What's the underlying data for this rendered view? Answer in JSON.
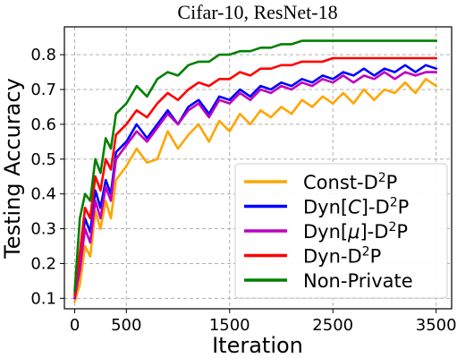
{
  "chart_data": {
    "type": "line",
    "title": "Cifar-10, ResNet-18",
    "xlabel": "Iteration",
    "ylabel": "Testing Accuracy",
    "xlim": [
      -100,
      3650
    ],
    "ylim": [
      0.07,
      0.88
    ],
    "xticks": [
      0,
      500,
      1500,
      2500,
      3500
    ],
    "xtick_labels": [
      "0",
      "500",
      "1500",
      "2500",
      "3500"
    ],
    "yticks": [
      0.1,
      0.2,
      0.3,
      0.4,
      0.5,
      0.6,
      0.7,
      0.8
    ],
    "ytick_labels": [
      "0.1",
      "0.2",
      "0.3",
      "0.4",
      "0.5",
      "0.6",
      "0.7",
      "0.8"
    ],
    "grid": true,
    "legend_position": "bottom-right",
    "series": [
      {
        "name": "Const-D²P",
        "name_parts": {
          "pre": "Const-D",
          "sup": "2",
          "post": "P"
        },
        "color": "#ffa500",
        "x": [
          0,
          50,
          100,
          150,
          200,
          250,
          300,
          350,
          400,
          500,
          600,
          700,
          800,
          900,
          1000,
          1100,
          1200,
          1300,
          1400,
          1500,
          1600,
          1700,
          1800,
          1900,
          2000,
          2100,
          2200,
          2300,
          2400,
          2500,
          2600,
          2700,
          2800,
          2900,
          3000,
          3100,
          3200,
          3300,
          3400,
          3500
        ],
        "y": [
          0.09,
          0.14,
          0.25,
          0.22,
          0.35,
          0.3,
          0.38,
          0.33,
          0.44,
          0.48,
          0.53,
          0.49,
          0.5,
          0.58,
          0.53,
          0.57,
          0.6,
          0.55,
          0.61,
          0.58,
          0.63,
          0.6,
          0.64,
          0.62,
          0.65,
          0.63,
          0.67,
          0.65,
          0.68,
          0.66,
          0.69,
          0.66,
          0.7,
          0.67,
          0.7,
          0.69,
          0.72,
          0.69,
          0.73,
          0.71
        ]
      },
      {
        "name": "Dyn[C]-D²P",
        "name_parts": {
          "pre": "Dyn[",
          "italic": "C",
          "mid": "]-D",
          "sup": "2",
          "post": "P"
        },
        "color": "#0000ff",
        "x": [
          0,
          50,
          100,
          150,
          200,
          250,
          300,
          350,
          400,
          500,
          600,
          700,
          800,
          900,
          1000,
          1100,
          1200,
          1300,
          1400,
          1500,
          1600,
          1700,
          1800,
          1900,
          2000,
          2100,
          2200,
          2300,
          2400,
          2500,
          2600,
          2700,
          2800,
          2900,
          3000,
          3100,
          3200,
          3300,
          3400,
          3500
        ],
        "y": [
          0.1,
          0.2,
          0.33,
          0.29,
          0.41,
          0.36,
          0.44,
          0.4,
          0.52,
          0.55,
          0.6,
          0.56,
          0.6,
          0.64,
          0.6,
          0.65,
          0.67,
          0.63,
          0.68,
          0.67,
          0.7,
          0.68,
          0.71,
          0.7,
          0.72,
          0.71,
          0.73,
          0.72,
          0.74,
          0.73,
          0.75,
          0.74,
          0.76,
          0.74,
          0.76,
          0.75,
          0.77,
          0.75,
          0.77,
          0.76
        ]
      },
      {
        "name": "Dyn[μ]-D²P",
        "name_parts": {
          "pre": "Dyn[",
          "italic": "μ",
          "mid": "]-D",
          "sup": "2",
          "post": "P"
        },
        "color": "#bf00bf",
        "x": [
          0,
          50,
          100,
          150,
          200,
          250,
          300,
          350,
          400,
          500,
          600,
          700,
          800,
          900,
          1000,
          1100,
          1200,
          1300,
          1400,
          1500,
          1600,
          1700,
          1800,
          1900,
          2000,
          2100,
          2200,
          2300,
          2400,
          2500,
          2600,
          2700,
          2800,
          2900,
          3000,
          3100,
          3200,
          3300,
          3400,
          3500
        ],
        "y": [
          0.1,
          0.18,
          0.3,
          0.26,
          0.38,
          0.33,
          0.42,
          0.38,
          0.5,
          0.54,
          0.58,
          0.55,
          0.59,
          0.63,
          0.6,
          0.64,
          0.66,
          0.62,
          0.67,
          0.66,
          0.69,
          0.67,
          0.7,
          0.69,
          0.71,
          0.7,
          0.72,
          0.71,
          0.73,
          0.72,
          0.74,
          0.72,
          0.74,
          0.73,
          0.75,
          0.73,
          0.75,
          0.74,
          0.75,
          0.75
        ]
      },
      {
        "name": "Dyn-D²P",
        "name_parts": {
          "pre": "Dyn-D",
          "sup": "2",
          "post": "P"
        },
        "color": "#ff0000",
        "x": [
          0,
          50,
          100,
          150,
          200,
          250,
          300,
          350,
          400,
          500,
          600,
          700,
          800,
          900,
          1000,
          1100,
          1200,
          1300,
          1400,
          1500,
          1600,
          1700,
          1800,
          1900,
          2000,
          2100,
          2200,
          2300,
          2400,
          2500,
          2600,
          2700,
          2800,
          2900,
          3000,
          3100,
          3200,
          3300,
          3400,
          3500
        ],
        "y": [
          0.11,
          0.23,
          0.36,
          0.33,
          0.45,
          0.41,
          0.5,
          0.47,
          0.57,
          0.6,
          0.64,
          0.62,
          0.66,
          0.69,
          0.67,
          0.7,
          0.72,
          0.71,
          0.73,
          0.73,
          0.75,
          0.74,
          0.76,
          0.76,
          0.77,
          0.77,
          0.78,
          0.78,
          0.78,
          0.79,
          0.79,
          0.79,
          0.79,
          0.79,
          0.79,
          0.79,
          0.79,
          0.79,
          0.79,
          0.79
        ]
      },
      {
        "name": "Non-Private",
        "name_parts": {
          "pre": "Non-Private"
        },
        "color": "#008000",
        "x": [
          0,
          50,
          100,
          150,
          200,
          250,
          300,
          350,
          400,
          500,
          600,
          700,
          800,
          900,
          1000,
          1100,
          1200,
          1300,
          1400,
          1500,
          1600,
          1700,
          1800,
          1900,
          2000,
          2100,
          2200,
          2300,
          2400,
          2500,
          2600,
          2700,
          2800,
          2900,
          3000,
          3100,
          3200,
          3300,
          3400,
          3500
        ],
        "y": [
          0.12,
          0.33,
          0.4,
          0.38,
          0.5,
          0.46,
          0.56,
          0.53,
          0.63,
          0.66,
          0.71,
          0.68,
          0.73,
          0.75,
          0.74,
          0.77,
          0.78,
          0.78,
          0.8,
          0.8,
          0.81,
          0.81,
          0.82,
          0.82,
          0.83,
          0.83,
          0.84,
          0.84,
          0.84,
          0.84,
          0.84,
          0.84,
          0.84,
          0.84,
          0.84,
          0.84,
          0.84,
          0.84,
          0.84,
          0.84
        ]
      }
    ]
  }
}
